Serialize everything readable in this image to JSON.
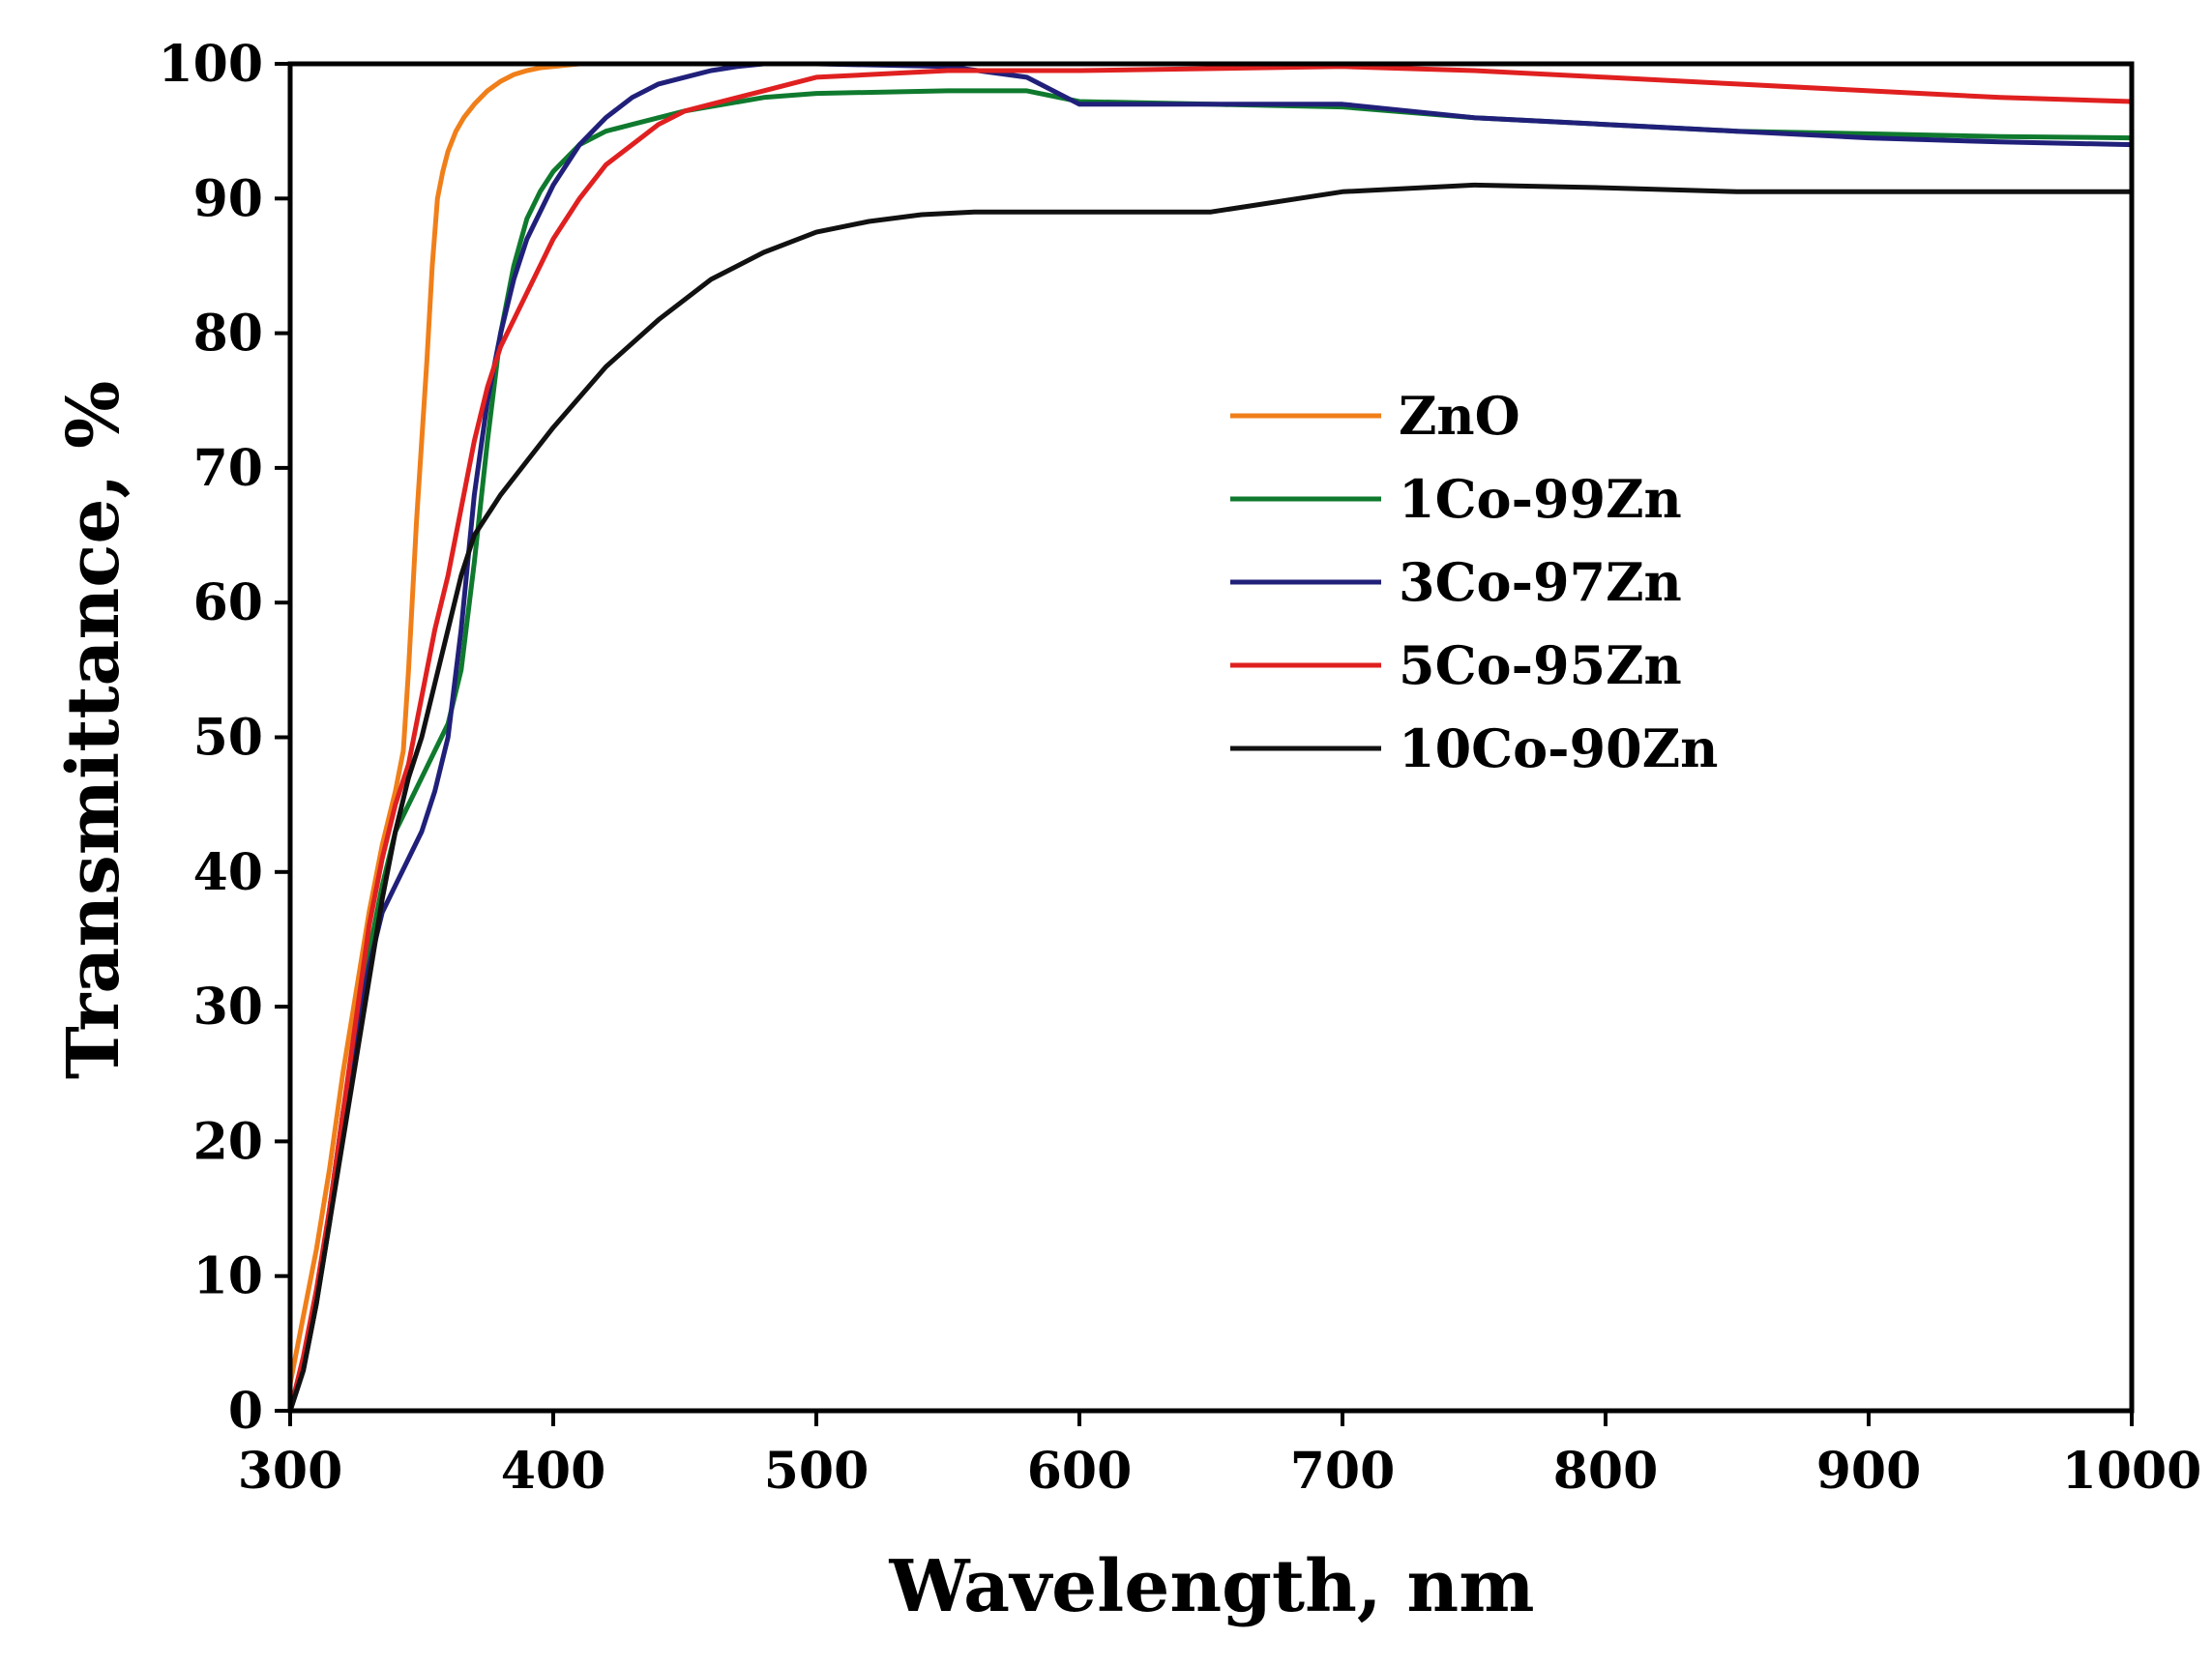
{
  "chart_data": {
    "type": "line",
    "title": "",
    "xlabel": "Wavelength, nm",
    "ylabel": "Transmittance, %",
    "xlim": [
      300,
      1000
    ],
    "ylim": [
      0,
      100
    ],
    "xticks": [
      300,
      400,
      500,
      600,
      700,
      800,
      900,
      1000
    ],
    "yticks": [
      0,
      10,
      20,
      30,
      40,
      50,
      60,
      70,
      80,
      90,
      100
    ],
    "grid": false,
    "legend_position": "upper-right",
    "series": [
      {
        "name": "ZnO",
        "color": "#f07f1a",
        "x": [
          300,
          305,
          310,
          315,
          320,
          325,
          330,
          335,
          340,
          343,
          345,
          348,
          350,
          352,
          354,
          356,
          358,
          360,
          363,
          366,
          370,
          375,
          380,
          385,
          390,
          395,
          400,
          410,
          450,
          500,
          600,
          700,
          800,
          900,
          1000
        ],
        "y": [
          2,
          7,
          12,
          18,
          25,
          31,
          37,
          42,
          46,
          49,
          55,
          66,
          72,
          78,
          85,
          90,
          92,
          93.5,
          95,
          96,
          97,
          98,
          98.7,
          99.2,
          99.5,
          99.7,
          99.8,
          100,
          100,
          100,
          100,
          100,
          100,
          100,
          100
        ]
      },
      {
        "name": "1Co-99Zn",
        "color": "#0f7a2e",
        "x": [
          300,
          305,
          310,
          315,
          320,
          325,
          330,
          335,
          340,
          345,
          350,
          355,
          360,
          365,
          370,
          375,
          380,
          385,
          390,
          395,
          400,
          410,
          420,
          430,
          450,
          480,
          500,
          550,
          580,
          600,
          650,
          700,
          750,
          800,
          850,
          900,
          950,
          1000
        ],
        "y": [
          0,
          3,
          8,
          14,
          22,
          28,
          34,
          39,
          43,
          45,
          47,
          49,
          51,
          55,
          63,
          72,
          80,
          85,
          88.5,
          90.5,
          92,
          94,
          95,
          95.5,
          96.5,
          97.5,
          97.8,
          98,
          98,
          97.2,
          97,
          96.8,
          96,
          95.5,
          95,
          94.8,
          94.6,
          94.5
        ]
      },
      {
        "name": "3Co-97Zn",
        "color": "#20207a",
        "x": [
          300,
          305,
          310,
          315,
          320,
          325,
          330,
          335,
          340,
          345,
          350,
          355,
          360,
          365,
          370,
          375,
          380,
          385,
          390,
          400,
          410,
          420,
          430,
          440,
          450,
          460,
          470,
          480,
          500,
          550,
          580,
          600,
          650,
          700,
          750,
          800,
          850,
          900,
          950,
          1000
        ],
        "y": [
          0,
          3,
          8,
          15,
          22,
          28,
          33,
          37,
          39,
          41,
          43,
          46,
          50,
          58,
          68,
          75,
          80,
          84,
          87,
          91,
          94,
          96,
          97.5,
          98.5,
          99,
          99.5,
          99.8,
          100,
          100,
          99.8,
          99,
          97,
          97,
          97,
          96,
          95.5,
          95,
          94.5,
          94.2,
          94
        ]
      },
      {
        "name": "5Co-95Zn",
        "color": "#e02020",
        "x": [
          300,
          305,
          310,
          315,
          320,
          325,
          330,
          335,
          340,
          345,
          350,
          355,
          360,
          365,
          370,
          375,
          380,
          385,
          390,
          400,
          410,
          420,
          430,
          440,
          450,
          460,
          480,
          500,
          550,
          600,
          700,
          750,
          800,
          850,
          900,
          950,
          1000
        ],
        "y": [
          0,
          4,
          9,
          15,
          22,
          29,
          36,
          41,
          45,
          48,
          53,
          58,
          62,
          67,
          72,
          76,
          79,
          81,
          83,
          87,
          90,
          92.5,
          94,
          95.5,
          96.5,
          97,
          98,
          99,
          99.5,
          99.5,
          99.8,
          99.5,
          99,
          98.5,
          98,
          97.5,
          97.2
        ]
      },
      {
        "name": "10Co-90Zn",
        "color": "#111111",
        "x": [
          300,
          305,
          310,
          315,
          320,
          325,
          330,
          335,
          340,
          345,
          350,
          355,
          360,
          365,
          370,
          380,
          390,
          400,
          420,
          440,
          460,
          480,
          500,
          520,
          540,
          560,
          600,
          650,
          700,
          750,
          800,
          850,
          900,
          950,
          1000
        ],
        "y": [
          0,
          3,
          8,
          14,
          20,
          26,
          32,
          38,
          43,
          47,
          50,
          54,
          58,
          62,
          65,
          68,
          70.5,
          73,
          77.5,
          81,
          84,
          86,
          87.5,
          88.3,
          88.8,
          89,
          89,
          89,
          90.5,
          91,
          90.8,
          90.5,
          90.5,
          90.5,
          90.5
        ]
      }
    ]
  }
}
